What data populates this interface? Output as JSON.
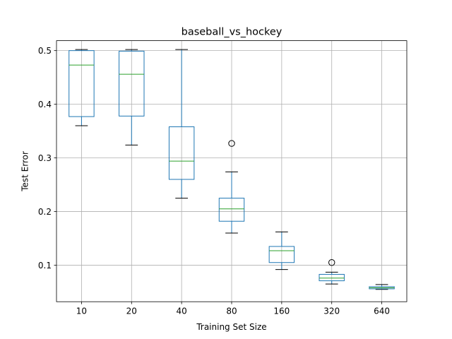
{
  "chart_data": {
    "type": "box",
    "title": "baseball_vs_hockey",
    "xlabel": "Training Set Size",
    "ylabel": "Test Error",
    "ylim": [
      0.032,
      0.5185
    ],
    "yticks": [
      0.1,
      0.2,
      0.3,
      0.4,
      0.5
    ],
    "ytick_labels": [
      "0.1",
      "0.2",
      "0.3",
      "0.4",
      "0.5"
    ],
    "grid": true,
    "categories": [
      "10",
      "20",
      "40",
      "80",
      "160",
      "320",
      "640"
    ],
    "boxes": [
      {
        "category": "10",
        "whisker_low": 0.36,
        "q1": 0.377,
        "median": 0.473,
        "q3": 0.5,
        "whisker_high": 0.502,
        "outliers": []
      },
      {
        "category": "20",
        "whisker_low": 0.324,
        "q1": 0.378,
        "median": 0.456,
        "q3": 0.499,
        "whisker_high": 0.502,
        "outliers": []
      },
      {
        "category": "40",
        "whisker_low": 0.225,
        "q1": 0.26,
        "median": 0.294,
        "q3": 0.358,
        "whisker_high": 0.502,
        "outliers": []
      },
      {
        "category": "80",
        "whisker_low": 0.16,
        "q1": 0.182,
        "median": 0.205,
        "q3": 0.225,
        "whisker_high": 0.274,
        "outliers": [
          0.327
        ]
      },
      {
        "category": "160",
        "whisker_low": 0.092,
        "q1": 0.105,
        "median": 0.127,
        "q3": 0.135,
        "whisker_high": 0.162,
        "outliers": []
      },
      {
        "category": "320",
        "whisker_low": 0.065,
        "q1": 0.071,
        "median": 0.076,
        "q3": 0.083,
        "whisker_high": 0.087,
        "outliers": [
          0.105
        ]
      },
      {
        "category": "640",
        "whisker_low": 0.055,
        "q1": 0.056,
        "median": 0.058,
        "q3": 0.06,
        "whisker_high": 0.064,
        "outliers": []
      }
    ],
    "colors": {
      "box": "#1f77b4",
      "median": "#2ca02c",
      "whisker": "#000000",
      "grid": "#b0b0b0"
    }
  }
}
